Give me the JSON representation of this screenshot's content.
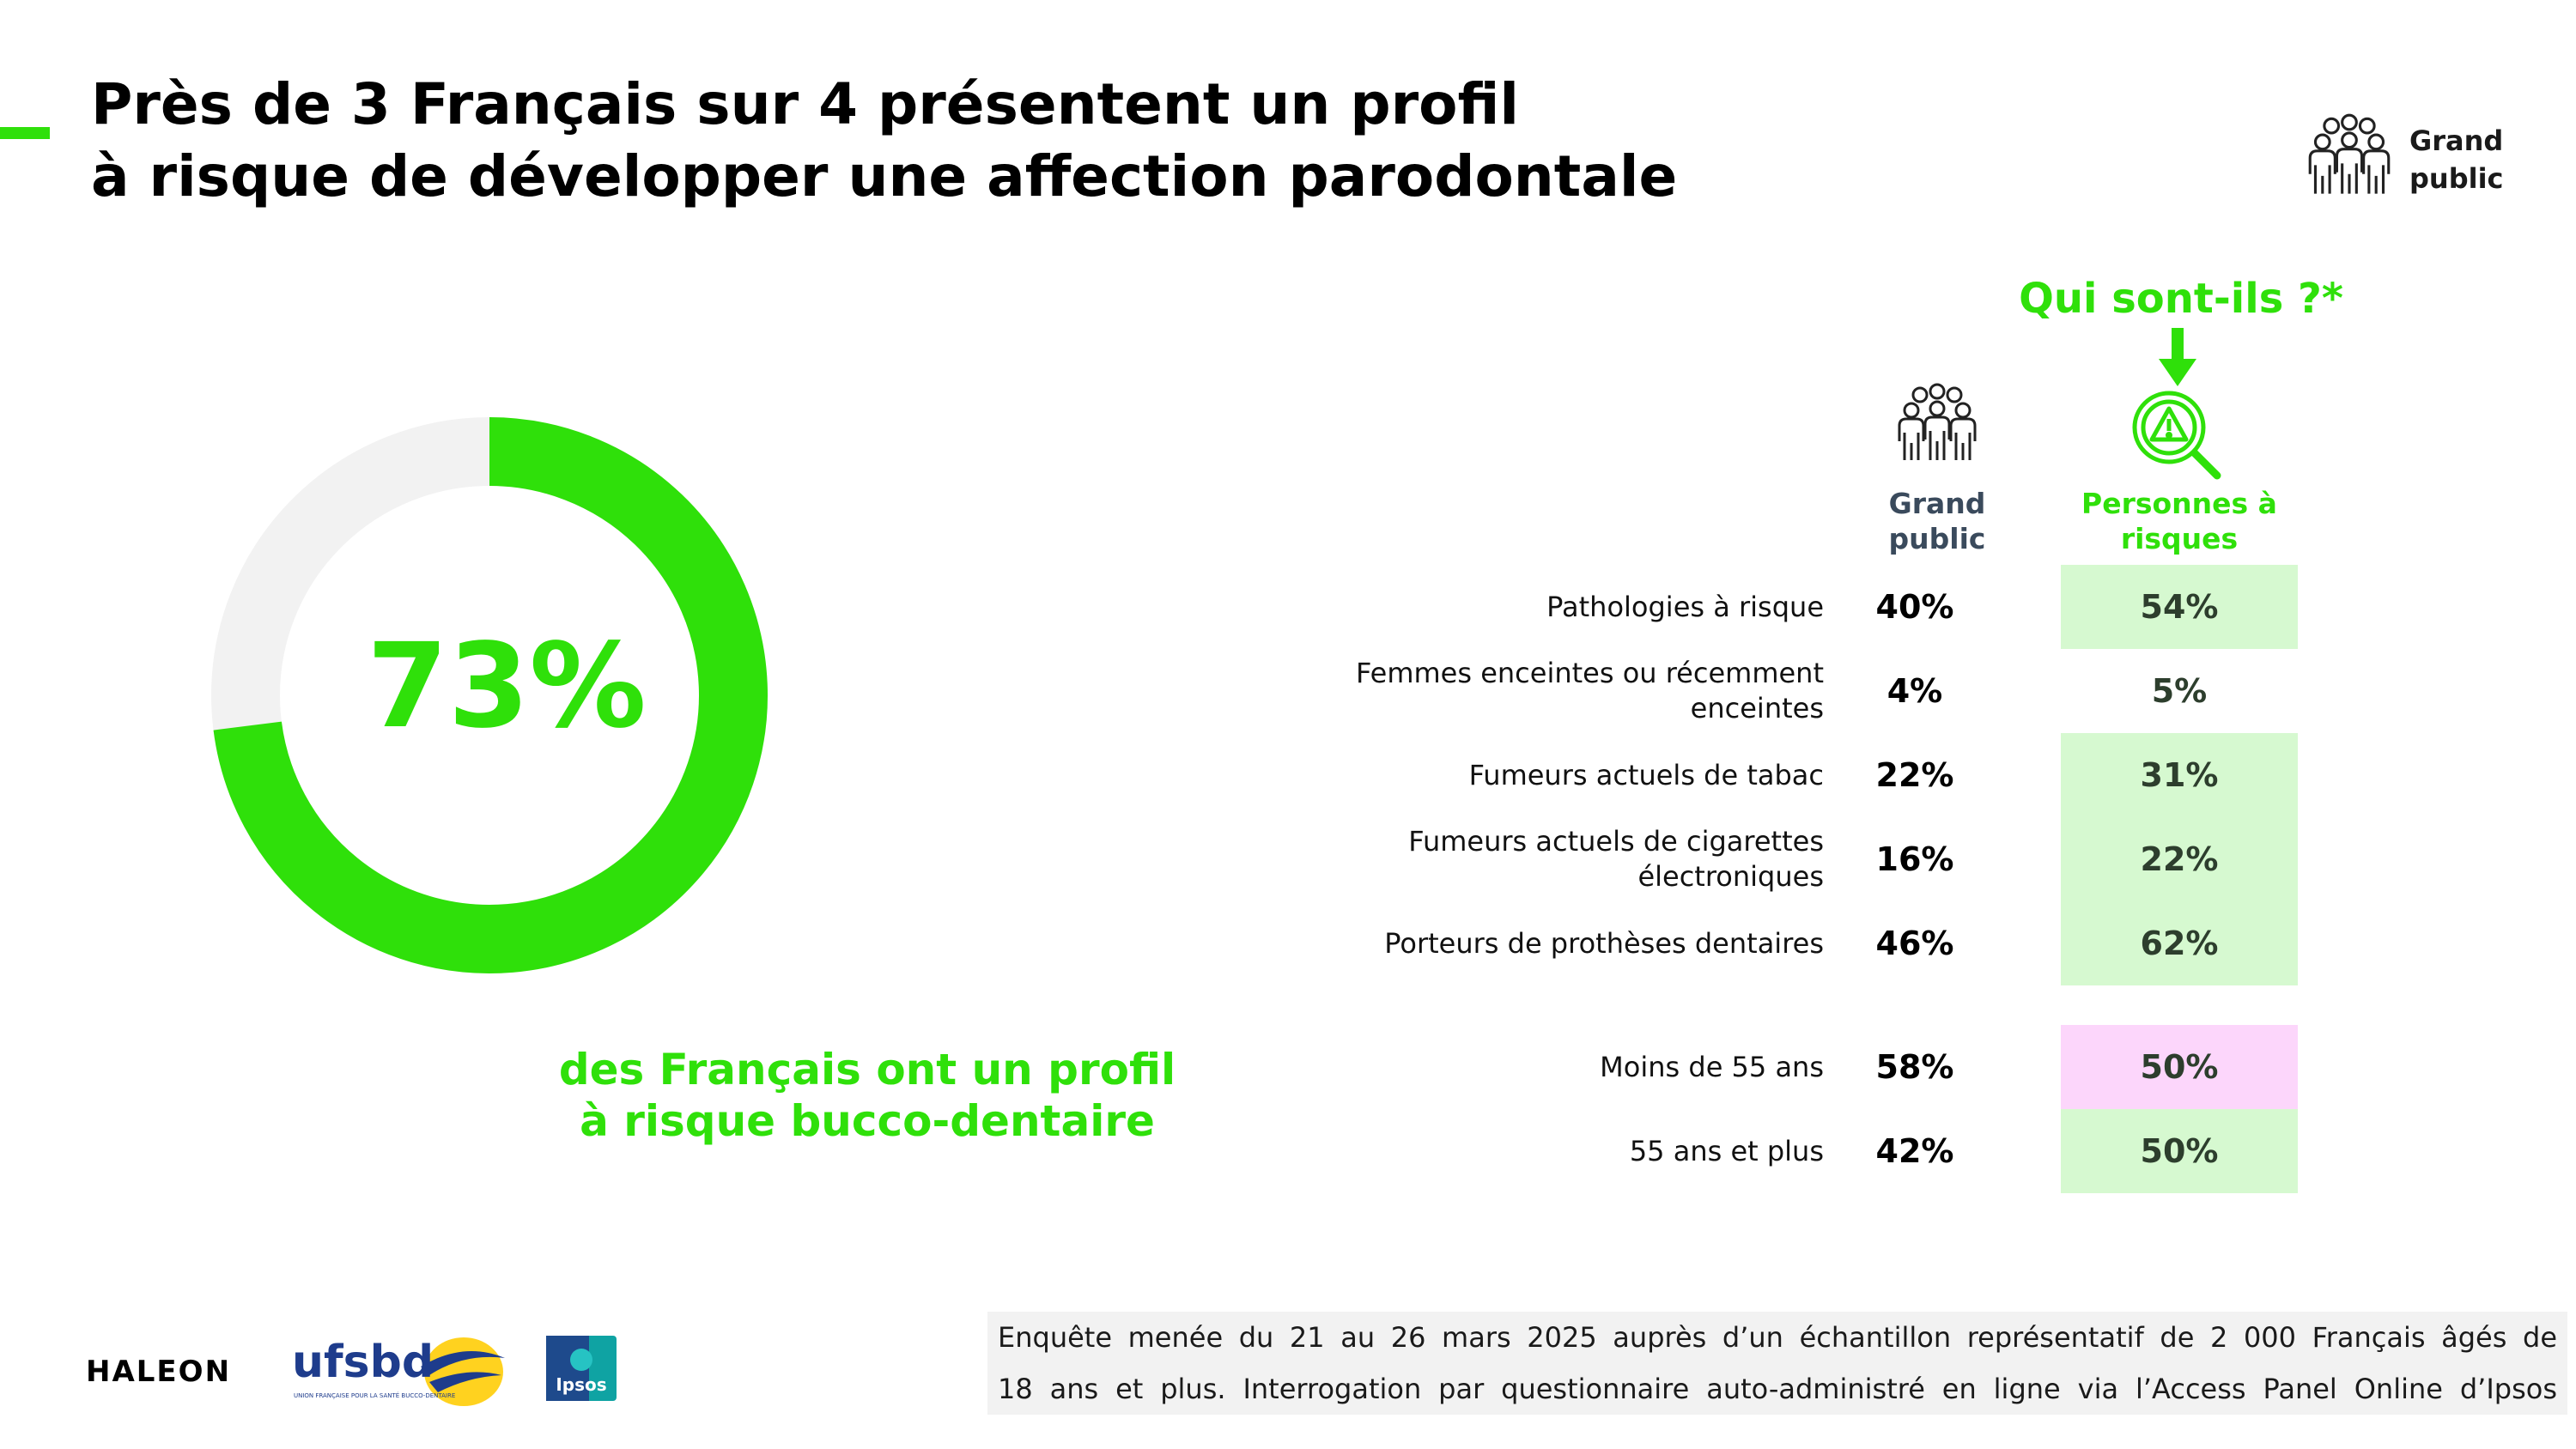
{
  "title": {
    "line1": "Près de 3 Français sur 4 présentent un profil",
    "line2": "à risque de développer une affection parodontale"
  },
  "corner_badge": {
    "icon": "people-group-icon",
    "line1": "Grand",
    "line2": "public"
  },
  "headline": {
    "value": "73%",
    "caption_line1": "des Français ont un profil",
    "caption_line2": "à risque bucco-dentaire"
  },
  "breakdown": {
    "heading": "Qui sont-ils ?*",
    "col_general": {
      "icon": "people-group-icon",
      "line1": "Grand",
      "line2": "public"
    },
    "col_risk": {
      "icon": "risk-magnifier-icon",
      "line1": "Personnes à",
      "line2": "risques"
    }
  },
  "chart_data": [
    {
      "type": "pie",
      "labels": [
        "des Français ont un profil à risque bucco-dentaire"
      ],
      "values": [
        73
      ],
      "total": 100
    },
    {
      "type": "table",
      "columns": [
        "Grand public",
        "Personnes à risques"
      ],
      "rows": [
        {
          "label_lines": [
            "Pathologies à risque"
          ],
          "general": "40%",
          "risk": "54%",
          "highlight": "green"
        },
        {
          "label_lines": [
            "Femmes enceintes ou récemment",
            "enceintes"
          ],
          "general": "4%",
          "risk": "5%",
          "highlight": "none"
        },
        {
          "label_lines": [
            "Fumeurs actuels de tabac"
          ],
          "general": "22%",
          "risk": "31%",
          "highlight": "green"
        },
        {
          "label_lines": [
            "Fumeurs actuels de cigarettes",
            "électroniques"
          ],
          "general": "16%",
          "risk": "22%",
          "highlight": "green"
        },
        {
          "label_lines": [
            "Porteurs de prothèses dentaires"
          ],
          "general": "46%",
          "risk": "62%",
          "highlight": "green"
        },
        {
          "label_lines": [
            "Moins de 55 ans"
          ],
          "general": "58%",
          "risk": "50%",
          "highlight": "pink"
        },
        {
          "label_lines": [
            "55 ans et plus"
          ],
          "general": "42%",
          "risk": "50%",
          "highlight": "green"
        }
      ]
    }
  ],
  "colors": {
    "accent": "#2fe00a",
    "track": "#f2f2f2",
    "highlight_green": "#d6f9d0",
    "highlight_pink": "#fcd6fb"
  },
  "footnote": {
    "line1": "Enquête menée du 21 au 26 mars 2025 auprès d’un échantillon représentatif de 2 000 Français âgés de",
    "line2": "18 ans et plus. Interrogation par questionnaire auto-administré en ligne via l’Access Panel Online d’Ipsos"
  },
  "logos": {
    "haleon": "HALEON",
    "ufsbd": "ufsbd",
    "ufsbd_tagline": "UNION FRANÇAISE POUR LA SANTÉ BUCCO-DENTAIRE",
    "ipsos": "Ipsos"
  }
}
